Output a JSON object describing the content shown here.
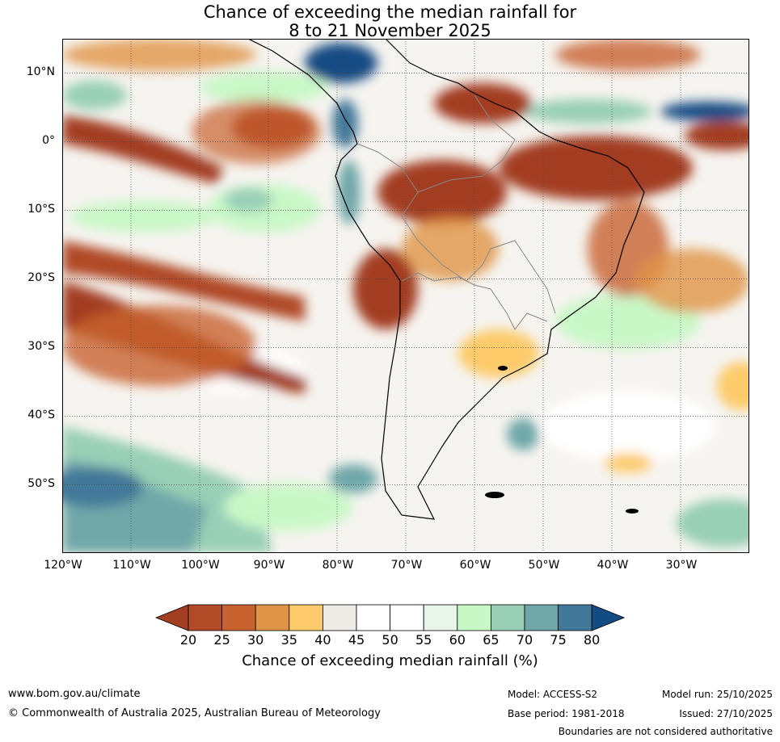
{
  "title": {
    "line1": "Chance of exceeding the median rainfall for",
    "line2": "8 to 21 November 2025"
  },
  "map": {
    "projection": "equirectangular",
    "lon_range": [
      -120,
      -20
    ],
    "lat_range": [
      -60,
      15
    ],
    "lat_labels": [
      "10°N",
      "0°",
      "10°S",
      "20°S",
      "30°S",
      "40°S",
      "50°S"
    ],
    "lon_labels": [
      "120°W",
      "110°W",
      "100°W",
      "90°W",
      "80°W",
      "70°W",
      "60°W",
      "50°W",
      "40°W",
      "30°W"
    ]
  },
  "colorbar": {
    "ticks": [
      "20",
      "25",
      "30",
      "35",
      "40",
      "45",
      "50",
      "55",
      "60",
      "65",
      "70",
      "75",
      "80"
    ],
    "colors": [
      "#a33e22",
      "#b04a27",
      "#c8632f",
      "#e09445",
      "#fdcb6b",
      "#eeebe6",
      "#ffffff",
      "#ffffff",
      "#e8f5e8",
      "#c9f8c7",
      "#98cfb6",
      "#6fa7a9",
      "#427899",
      "#124c83"
    ],
    "label": "Chance of exceeding median rainfall (%)"
  },
  "footer": {
    "website": "www.bom.gov.au/climate",
    "copyright": "© Commonwealth of Australia 2025, Australian Bureau of Meteorology",
    "model": "Model: ACCESS-S2",
    "base_period": "Base period: 1981-2018",
    "model_run": "Model run: 25/10/2025",
    "issued": "Issued: 27/10/2025",
    "disclaimer": "Boundaries are not considered authoritative"
  }
}
